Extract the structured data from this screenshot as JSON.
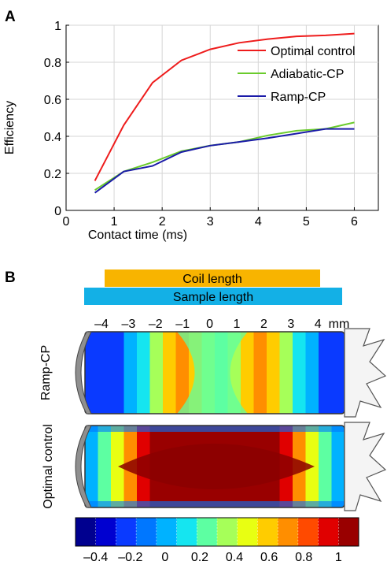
{
  "panel_a_label": "A",
  "panel_b_label": "B",
  "chart_data": [
    {
      "type": "line",
      "xlabel": "Contact time (ms)",
      "ylabel": "Efficiency",
      "xlim": [
        0,
        6.5
      ],
      "ylim": [
        0,
        1
      ],
      "xticks": [
        "0",
        "1",
        "2",
        "3",
        "4",
        "5",
        "6"
      ],
      "yticks": [
        "0",
        "0.2",
        "0.4",
        "0.6",
        "0.8",
        "1"
      ],
      "grid": true,
      "legend_position": "right",
      "series": [
        {
          "name": "Optimal control",
          "color": "#ee1c1c",
          "x": [
            0.6,
            1.2,
            1.8,
            2.4,
            3.0,
            3.6,
            4.2,
            4.8,
            5.4,
            6.0
          ],
          "y": [
            0.16,
            0.46,
            0.69,
            0.81,
            0.87,
            0.905,
            0.925,
            0.94,
            0.945,
            0.955
          ]
        },
        {
          "name": "Adiabatic-CP",
          "color": "#6acb2c",
          "x": [
            0.6,
            1.2,
            1.8,
            2.4,
            3.0,
            3.6,
            4.2,
            4.8,
            5.4,
            6.0
          ],
          "y": [
            0.11,
            0.21,
            0.26,
            0.32,
            0.35,
            0.37,
            0.405,
            0.43,
            0.44,
            0.475
          ]
        },
        {
          "name": "Ramp-CP",
          "color": "#1a1aa8",
          "x": [
            0.6,
            1.2,
            1.8,
            2.4,
            3.0,
            3.6,
            4.2,
            4.8,
            5.4,
            6.0
          ],
          "y": [
            0.095,
            0.21,
            0.24,
            0.315,
            0.35,
            0.37,
            0.39,
            0.415,
            0.44,
            0.44
          ]
        }
      ]
    },
    {
      "type": "heatmap",
      "coil_label": "Coil length",
      "sample_label": "Sample length",
      "coil_color": "#f8b400",
      "sample_color": "#13b0e6",
      "axis_ticks": [
        "–4",
        "–3",
        "–2",
        "–1",
        "0",
        "1",
        "2",
        "3",
        "4"
      ],
      "axis_unit": "mm",
      "rows": [
        {
          "label": "Ramp-CP",
          "profile": [
            -0.2,
            -0.2,
            -0.15,
            0.0,
            0.1,
            0.3,
            0.55,
            0.7,
            0.55,
            0.35,
            0.25,
            0.35,
            0.55,
            0.7,
            0.55,
            0.3,
            0.1,
            0.0,
            -0.15,
            -0.2
          ]
        },
        {
          "label": "Optimal control",
          "profile": [
            0.0,
            0.2,
            0.45,
            0.7,
            0.85,
            0.95,
            1.0,
            1.0,
            1.0,
            1.0,
            1.0,
            1.0,
            1.0,
            1.0,
            0.95,
            0.85,
            0.7,
            0.45,
            0.2,
            0.0
          ]
        }
      ],
      "colorbar_ticks": [
        "–0.4",
        "–0.2",
        "0",
        "0.2",
        "0.4",
        "0.6",
        "0.8",
        "1"
      ],
      "colorbar_colors": [
        "#00008f",
        "#0000d0",
        "#0a3aff",
        "#0077ff",
        "#00b2ff",
        "#15e5f0",
        "#5dffa2",
        "#a6ff59",
        "#e8ff12",
        "#ffcc00",
        "#ff8e00",
        "#ff4a00",
        "#e00000",
        "#990000"
      ]
    }
  ]
}
